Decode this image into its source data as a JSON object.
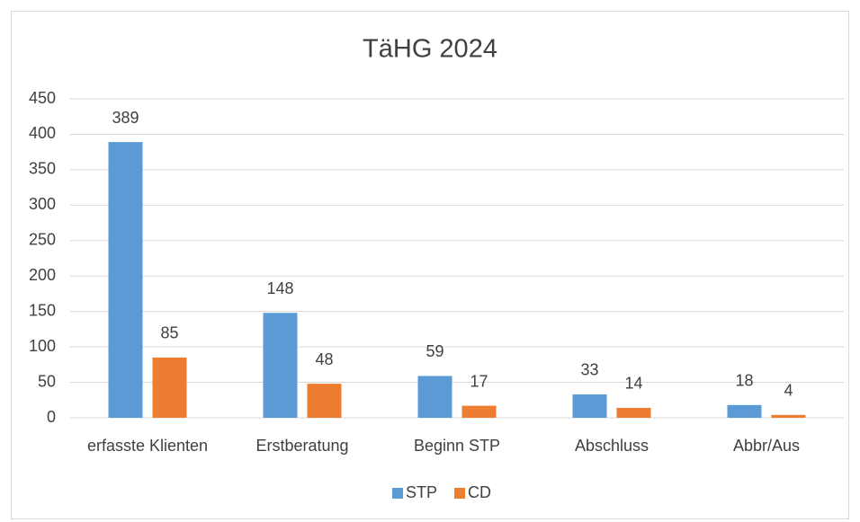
{
  "chart_data": {
    "type": "bar",
    "title": "TäHG 2024",
    "categories": [
      "erfasste Klienten",
      "Erstberatung",
      "Beginn STP",
      "Abschluss",
      "Abbr/Aus"
    ],
    "series": [
      {
        "name": "STP",
        "color": "#5b9bd5",
        "values": [
          389,
          148,
          59,
          33,
          18
        ]
      },
      {
        "name": "CD",
        "color": "#ed7d31",
        "values": [
          85,
          48,
          17,
          14,
          4
        ]
      }
    ],
    "ylim": [
      0,
      450
    ],
    "yticks": [
      0,
      50,
      100,
      150,
      200,
      250,
      300,
      350,
      400,
      450
    ],
    "grid": true,
    "legend": "bottom"
  }
}
